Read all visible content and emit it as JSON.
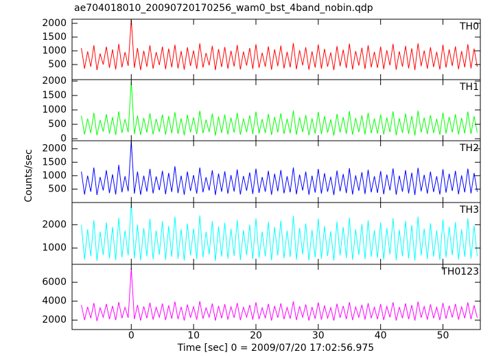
{
  "chart_data": {
    "type": "line",
    "title": "ae704018010_20090720170256_wam0_bst_4band_nobin.qdp",
    "xlabel": "Time [sec] 0 = 2009/07/20 17:02:56.975",
    "ylabel": "Counts/sec",
    "xlim": [
      -9.5,
      56
    ],
    "xticks": [
      0,
      10,
      20,
      30,
      40,
      50
    ],
    "x": [
      -8,
      -7.5,
      -7,
      -6.5,
      -6,
      -5.5,
      -5,
      -4.5,
      -4,
      -3.5,
      -3,
      -2.5,
      -2,
      -1.5,
      -1,
      -0.5,
      0,
      0.5,
      1,
      1.5,
      2,
      2.5,
      3,
      3.5,
      4,
      4.5,
      5,
      5.5,
      6,
      6.5,
      7,
      7.5,
      8,
      8.5,
      9,
      9.5,
      10,
      10.5,
      11,
      11.5,
      12,
      12.5,
      13,
      13.5,
      14,
      14.5,
      15,
      15.5,
      16,
      16.5,
      17,
      17.5,
      18,
      18.5,
      19,
      19.5,
      20,
      20.5,
      21,
      21.5,
      22,
      22.5,
      23,
      23.5,
      24,
      24.5,
      25,
      25.5,
      26,
      26.5,
      27,
      27.5,
      28,
      28.5,
      29,
      29.5,
      30,
      30.5,
      31,
      31.5,
      32,
      32.5,
      33,
      33.5,
      34,
      34.5,
      35,
      35.5,
      36,
      36.5,
      37,
      37.5,
      38,
      38.5,
      39,
      39.5,
      40,
      40.5,
      41,
      41.5,
      42,
      42.5,
      43,
      43.5,
      44,
      44.5,
      45,
      45.5,
      46,
      46.5,
      47,
      47.5,
      48,
      48.5,
      49,
      49.5,
      50,
      50.5,
      51,
      51.5,
      52,
      52.5,
      53,
      53.5,
      54,
      54.5,
      55,
      55.5
    ],
    "series": [
      {
        "name": "TH0",
        "color": "#ff0000",
        "ylim": [
          -50,
          2150
        ],
        "yticks": [
          500,
          1000,
          1500,
          2000
        ],
        "values": [
          1100,
          350,
          980,
          420,
          1200,
          300,
          900,
          500,
          1150,
          380,
          1050,
          320,
          1250,
          400,
          950,
          450,
          2150,
          380,
          1100,
          300,
          1000,
          420,
          1200,
          350,
          950,
          480,
          1150,
          330,
          1080,
          400,
          1220,
          360,
          990,
          310,
          1130,
          450,
          1010,
          340,
          1270,
          390,
          920,
          470,
          1180,
          300,
          1060,
          410,
          1140,
          350,
          1000,
          430,
          1210,
          320,
          970,
          460,
          1100,
          340,
          1240,
          380,
          930,
          420,
          1160,
          310,
          1050,
          440,
          1190,
          360,
          960,
          400,
          1280,
          330,
          1020,
          470,
          1130,
          310,
          980,
          390,
          1230,
          350,
          1070,
          420,
          940,
          300,
          1170,
          440,
          1040,
          370,
          1260,
          320,
          990,
          460,
          1110,
          340,
          1200,
          400,
          960,
          380,
          1150,
          330,
          1020,
          470,
          1250,
          310,
          980,
          420,
          1180,
          360,
          1090,
          300,
          1270,
          440,
          1010,
          350,
          1130,
          410,
          960,
          320,
          1220,
          390,
          1050,
          450,
          1160,
          330,
          990,
          400,
          1240,
          360,
          1080,
          420
        ]
      },
      {
        "name": "TH1",
        "color": "#00ff00",
        "ylim": [
          -70,
          2050
        ],
        "yticks": [
          0,
          500,
          1000,
          1500,
          2000
        ],
        "values": [
          800,
          150,
          700,
          200,
          900,
          120,
          650,
          250,
          850,
          180,
          750,
          130,
          950,
          200,
          680,
          220,
          2000,
          160,
          800,
          130,
          720,
          210,
          880,
          150,
          690,
          240,
          840,
          140,
          780,
          190,
          920,
          170,
          710,
          120,
          830,
          220,
          740,
          160,
          970,
          190,
          660,
          230,
          870,
          110,
          770,
          200,
          840,
          150,
          730,
          210,
          900,
          140,
          700,
          230,
          810,
          160,
          940,
          180,
          680,
          200,
          860,
          130,
          760,
          220,
          880,
          170,
          690,
          190,
          980,
          140,
          740,
          230,
          820,
          120,
          710,
          180,
          930,
          160,
          780,
          210,
          670,
          110,
          860,
          220,
          750,
          170,
          960,
          140,
          720,
          230,
          810,
          150,
          900,
          190,
          700,
          180,
          840,
          150,
          730,
          230,
          950,
          120,
          710,
          200,
          870,
          170,
          790,
          110,
          970,
          220,
          730,
          160,
          820,
          200,
          690,
          140,
          910,
          180,
          760,
          220,
          850,
          150,
          720,
          190,
          940,
          170,
          780,
          210
        ]
      },
      {
        "name": "TH2",
        "color": "#0000ff",
        "ylim": [
          0,
          2300
        ],
        "yticks": [
          500,
          1000,
          1500,
          2000
        ],
        "values": [
          1150,
          300,
          1000,
          400,
          1300,
          280,
          950,
          450,
          1200,
          350,
          1050,
          300,
          1400,
          380,
          980,
          420,
          2300,
          330,
          1150,
          290,
          1000,
          410,
          1250,
          340,
          970,
          460,
          1180,
          310,
          1100,
          390,
          1350,
          350,
          1000,
          290,
          1150,
          430,
          1020,
          330,
          1300,
          380,
          940,
          450,
          1200,
          280,
          1080,
          400,
          1160,
          330,
          1020,
          410,
          1230,
          300,
          990,
          440,
          1120,
          320,
          1260,
          360,
          950,
          400,
          1180,
          290,
          1070,
          420,
          1210,
          340,
          980,
          380,
          1300,
          310,
          1040,
          450,
          1150,
          290,
          1000,
          370,
          1250,
          330,
          1090,
          400,
          960,
          280,
          1190,
          420,
          1060,
          350,
          1280,
          300,
          1010,
          440,
          1130,
          320,
          1220,
          380,
          980,
          360,
          1170,
          310,
          1040,
          450,
          1270,
          290,
          1000,
          400,
          1200,
          340,
          1110,
          280,
          1290,
          420,
          1030,
          330,
          1150,
          390,
          980,
          300,
          1240,
          370,
          1070,
          430,
          1180,
          310,
          1010,
          380,
          1260,
          340,
          1100,
          400
        ]
      },
      {
        "name": "TH3",
        "color": "#00ffff",
        "ylim": [
          300,
          2950
        ],
        "yticks": [
          1000,
          2000
        ],
        "values": [
          2000,
          500,
          1800,
          650,
          2200,
          450,
          1700,
          700,
          2100,
          550,
          1900,
          480,
          2300,
          600,
          1750,
          680,
          2950,
          560,
          2000,
          470,
          1850,
          640,
          2250,
          520,
          1750,
          710,
          2150,
          490,
          1950,
          620,
          2350,
          540,
          1800,
          460,
          2050,
          690,
          1830,
          530,
          2400,
          600,
          1700,
          720,
          2150,
          450,
          1920,
          630,
          2080,
          540,
          1820,
          660,
          2200,
          480,
          1760,
          700,
          2000,
          520,
          2280,
          580,
          1700,
          640,
          2120,
          470,
          1900,
          680,
          2170,
          560,
          1740,
          610,
          2380,
          500,
          1860,
          720,
          2050,
          470,
          1780,
          600,
          2260,
          540,
          1940,
          650,
          1720,
          460,
          2130,
          680,
          1900,
          570,
          2300,
          490,
          1800,
          700,
          2020,
          520,
          2190,
          620,
          1760,
          580,
          2100,
          500,
          1850,
          720,
          2280,
          470,
          1780,
          640,
          2160,
          550,
          1980,
          460,
          2350,
          680,
          1830,
          530,
          2060,
          630,
          1750,
          490,
          2220,
          600,
          1910,
          690,
          2110,
          510,
          1800,
          620,
          2270,
          550,
          1960,
          650
        ]
      },
      {
        "name": "TH0123",
        "color": "#ff00ff",
        "ylim": [
          1000,
          7900
        ],
        "yticks": [
          2000,
          4000,
          6000
        ],
        "values": [
          3600,
          2000,
          3400,
          2200,
          3800,
          1900,
          3300,
          2300,
          3700,
          2100,
          3500,
          2000,
          3900,
          2200,
          3350,
          2250,
          7500,
          2100,
          3600,
          1950,
          3450,
          2200,
          3850,
          2050,
          3350,
          2300,
          3750,
          2000,
          3550,
          2150,
          3950,
          2100,
          3400,
          1950,
          3650,
          2250,
          3420,
          2050,
          4000,
          2150,
          3300,
          2300,
          3750,
          1950,
          3500,
          2200,
          3680,
          2050,
          3420,
          2250,
          3800,
          2000,
          3350,
          2300,
          3600,
          2050,
          3880,
          2100,
          3300,
          2200,
          3720,
          1950,
          3500,
          2250,
          3770,
          2100,
          3340,
          2150,
          3980,
          2000,
          3460,
          2300,
          3650,
          1950,
          3380,
          2150,
          3860,
          2050,
          3540,
          2200,
          3320,
          1950,
          3730,
          2250,
          3500,
          2100,
          3900,
          2000,
          3400,
          2300,
          3620,
          2050,
          3790,
          2200,
          3360,
          2100,
          3700,
          2000,
          3450,
          2300,
          3880,
          1950,
          3380,
          2200,
          3760,
          2100,
          3580,
          1950,
          3950,
          2250,
          3430,
          2050,
          3660,
          2200,
          3350,
          2000,
          3820,
          2150,
          3510,
          2280,
          3710,
          2050,
          3400,
          2200,
          3870,
          2100,
          3560,
          2250
        ]
      }
    ]
  }
}
